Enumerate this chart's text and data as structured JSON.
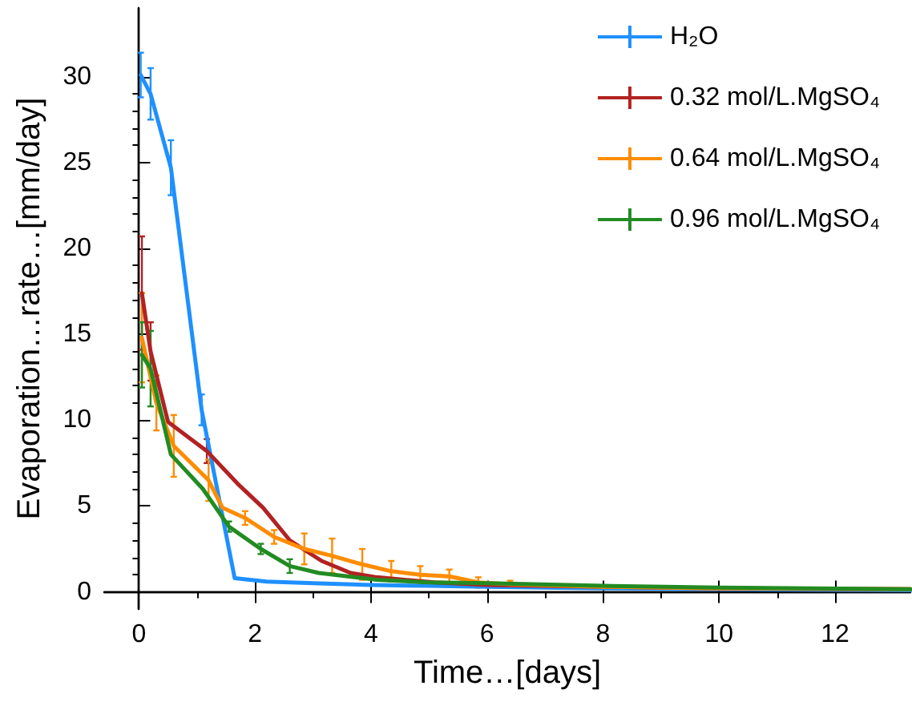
{
  "chart_data": {
    "type": "line",
    "xlabel": "Time…[days]",
    "ylabel": "Evaporation…rate…[mm/day]",
    "xlim": [
      -0.6,
      13.3
    ],
    "ylim": [
      -1,
      34
    ],
    "xticks": [
      0,
      2,
      4,
      6,
      8,
      10,
      12
    ],
    "yticks": [
      0,
      5,
      10,
      15,
      20,
      25,
      30
    ],
    "grid": false,
    "legend": "top right",
    "marker": "none",
    "line_style": "solid",
    "series": [
      {
        "name": "H₂O",
        "color": "#1e90ff",
        "x": [
          0.03,
          0.2,
          0.55,
          1.08,
          1.65,
          2.2,
          3,
          4,
          5,
          6,
          8,
          10,
          13.3
        ],
        "values": [
          30.1,
          29,
          24.7,
          10.6,
          0.8,
          0.6,
          0.5,
          0.4,
          0.35,
          0.3,
          0.2,
          0.15,
          0.1
        ],
        "errors": [
          1.3,
          1.5,
          1.6,
          0.9,
          null,
          null,
          null,
          null,
          null,
          null,
          null,
          null,
          null
        ]
      },
      {
        "name": "0.32 mol/L.MgSO₄",
        "color": "#b22222",
        "x": [
          0.05,
          0.2,
          0.5,
          1.17,
          1.7,
          2.14,
          2.6,
          3.15,
          3.65,
          4.1,
          5.1,
          6,
          8,
          10,
          13.3
        ],
        "values": [
          17.4,
          14,
          9.9,
          8.2,
          6.3,
          4.9,
          3,
          1.8,
          1.1,
          0.85,
          0.55,
          0.4,
          0.3,
          0.2,
          0.15
        ],
        "errors": [
          3.3,
          1.7,
          null,
          0.7,
          null,
          null,
          null,
          null,
          null,
          null,
          null,
          null,
          null,
          null,
          null
        ]
      },
      {
        "name": "0.64 mol/L.MgSO₄",
        "color": "#ff8c00",
        "x": [
          0.05,
          0.3,
          0.6,
          1.2,
          1.44,
          1.83,
          2.33,
          2.85,
          3.33,
          3.85,
          4.35,
          4.85,
          5.35,
          5.85,
          6.4,
          8,
          10,
          13.3
        ],
        "values": [
          14.8,
          11,
          8.5,
          6.5,
          4.9,
          4.3,
          3.2,
          2.5,
          2.1,
          1.6,
          1.2,
          1,
          0.9,
          0.55,
          0.45,
          0.3,
          0.2,
          0.15
        ],
        "errors": [
          2.6,
          1.6,
          1.8,
          1.2,
          null,
          0.4,
          0.4,
          0.9,
          1,
          0.9,
          0.6,
          0.5,
          0.4,
          0.3,
          0.2,
          null,
          null,
          null
        ]
      },
      {
        "name": "0.96 mol/L.MgSO₄",
        "color": "#228b22",
        "x": [
          0.05,
          0.2,
          0.55,
          1.1,
          1.55,
          2.1,
          2.6,
          3.1,
          3.6,
          4.1,
          5,
          6,
          8,
          10,
          13.3
        ],
        "values": [
          13.8,
          13,
          8,
          6,
          3.8,
          2.5,
          1.5,
          1.1,
          0.9,
          0.7,
          0.55,
          0.5,
          0.35,
          0.25,
          0.15
        ],
        "errors": [
          1.9,
          2.2,
          null,
          null,
          0.3,
          0.3,
          0.4,
          null,
          null,
          null,
          null,
          null,
          null,
          null,
          null
        ]
      }
    ]
  }
}
